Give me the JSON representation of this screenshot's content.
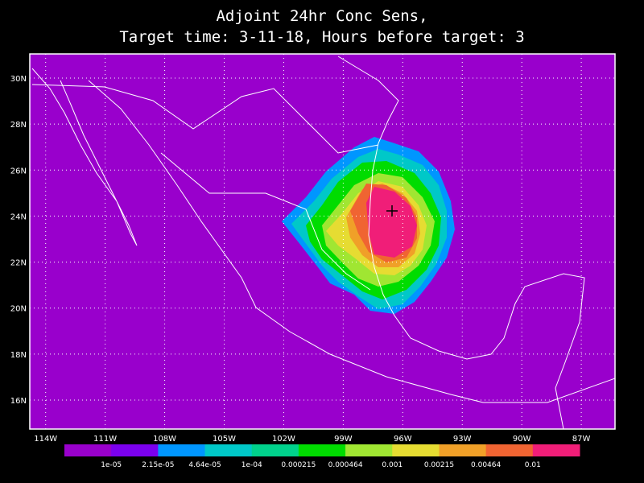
{
  "title": "Adjoint 24hr Conc Sens,",
  "subtitle": "Target time: 3-11-18, Hours before target: 3",
  "map": {
    "xlim": [
      -114.8,
      -85.3
    ],
    "ylim": [
      14.74,
      31.05
    ],
    "xticks": [
      {
        "value": -114,
        "label": "114W"
      },
      {
        "value": -111,
        "label": "111W"
      },
      {
        "value": -108,
        "label": "108W"
      },
      {
        "value": -105,
        "label": "105W"
      },
      {
        "value": -102,
        "label": "102W"
      },
      {
        "value": -99,
        "label": "99W"
      },
      {
        "value": -96,
        "label": "96W"
      },
      {
        "value": -93,
        "label": "93W"
      },
      {
        "value": -90,
        "label": "90W"
      },
      {
        "value": -87,
        "label": "87W"
      }
    ],
    "yticks": [
      {
        "value": 16,
        "label": "16N"
      },
      {
        "value": 18,
        "label": "18N"
      },
      {
        "value": 20,
        "label": "20N"
      },
      {
        "value": 22,
        "label": "22N"
      },
      {
        "value": 24,
        "label": "24N"
      },
      {
        "value": 26,
        "label": "26N"
      },
      {
        "value": 28,
        "label": "28N"
      },
      {
        "value": 30,
        "label": "30N"
      }
    ],
    "grid": true
  },
  "colorbar": {
    "colors": [
      "#9900cc",
      "#7b00ee",
      "#0096ff",
      "#00c8c8",
      "#00d28c",
      "#00dc00",
      "#a0e632",
      "#e6dc32",
      "#f0a028",
      "#f06432",
      "#f01e78"
    ],
    "labels": [
      "1e-05",
      "2.15e-05",
      "4.64e-05",
      "1e-04",
      "0.000215",
      "0.000464",
      "0.001",
      "0.00215",
      "0.00464",
      "0.01"
    ]
  }
}
